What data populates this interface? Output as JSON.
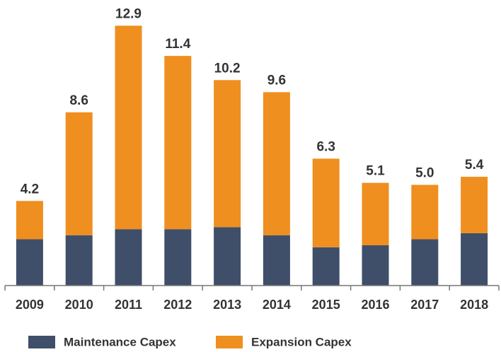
{
  "chart_data": {
    "type": "stacked_bar",
    "categories": [
      "2009",
      "2010",
      "2011",
      "2012",
      "2013",
      "2014",
      "2015",
      "2016",
      "2017",
      "2018"
    ],
    "series": [
      {
        "name": "Maintenance Capex",
        "color": "#3f4f69",
        "values": [
          2.3,
          2.5,
          2.8,
          2.8,
          2.9,
          2.5,
          1.9,
          2.0,
          2.3,
          2.6
        ]
      },
      {
        "name": "Expansion Capex",
        "color": "#ef8f1f",
        "values": [
          1.9,
          6.1,
          10.1,
          8.6,
          7.3,
          7.1,
          4.4,
          3.1,
          2.7,
          2.8
        ]
      }
    ],
    "totals": [
      4.2,
      8.6,
      12.9,
      11.4,
      10.2,
      9.6,
      6.3,
      5.1,
      5.0,
      5.4
    ],
    "total_labels": [
      "4.2",
      "8.6",
      "12.9",
      "11.4",
      "10.2",
      "9.6",
      "6.3",
      "5.1",
      "5.0",
      "5.4"
    ],
    "ylim": [
      0,
      14
    ]
  }
}
